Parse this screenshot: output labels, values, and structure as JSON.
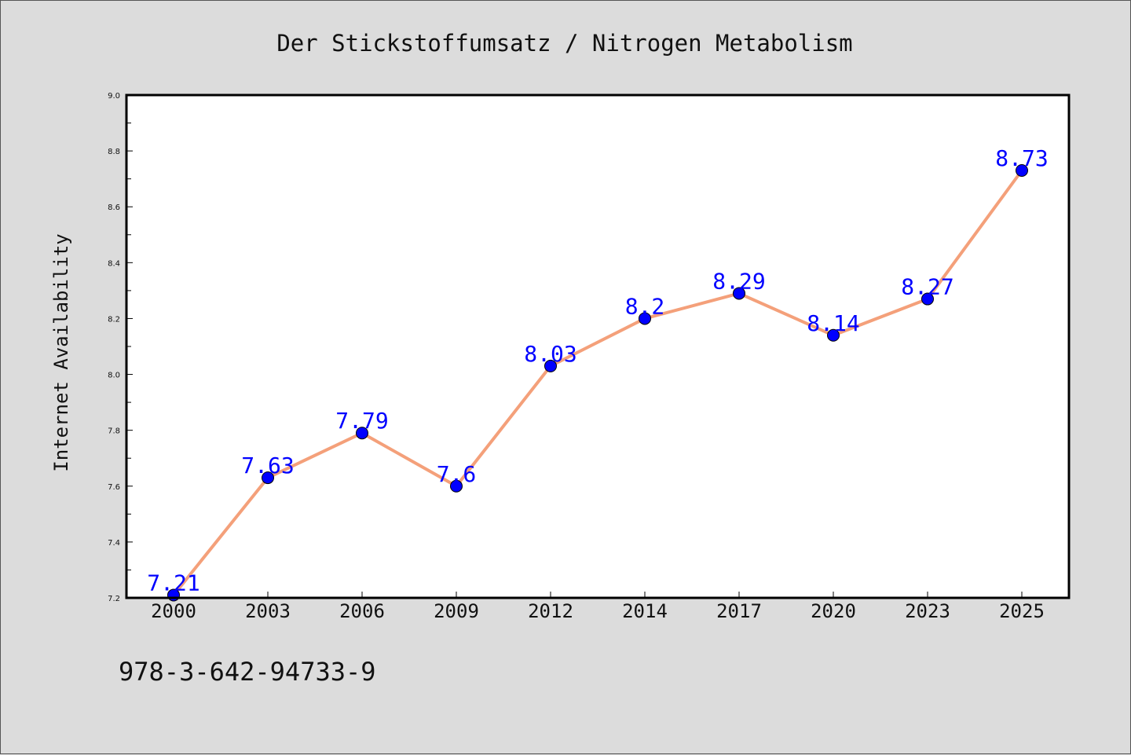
{
  "chart_data": {
    "type": "line",
    "title": "Der Stickstoffumsatz / Nitrogen Metabolism",
    "xlabel": "",
    "ylabel": "Internet Availability",
    "categories": [
      "2000",
      "2003",
      "2006",
      "2009",
      "2012",
      "2014",
      "2017",
      "2020",
      "2023",
      "2025"
    ],
    "series": [
      {
        "values": [
          7.21,
          7.63,
          7.79,
          7.6,
          8.03,
          8.2,
          8.29,
          8.14,
          8.27,
          8.73
        ],
        "labels": [
          "7.21",
          "7.63",
          "7.79",
          "7.6",
          "8.03",
          "8.2",
          "8.29",
          "8.14",
          "8.27",
          "8.73"
        ],
        "line_color": "#f4a07a",
        "marker_color": "#0000ff"
      }
    ],
    "ylim": [
      7.2,
      9.0
    ],
    "yticks": [
      "7.2",
      "7.4",
      "7.6",
      "7.8",
      "8.0",
      "8.2",
      "8.4",
      "8.6",
      "8.8",
      "9.0"
    ],
    "grid": false,
    "legend": "none",
    "data_labels": true
  },
  "footer": {
    "isbn": "978-3-642-94733-9"
  },
  "colors": {
    "background": "#dcdcdc",
    "plot_background": "#ffffff",
    "axis": "#000000"
  }
}
